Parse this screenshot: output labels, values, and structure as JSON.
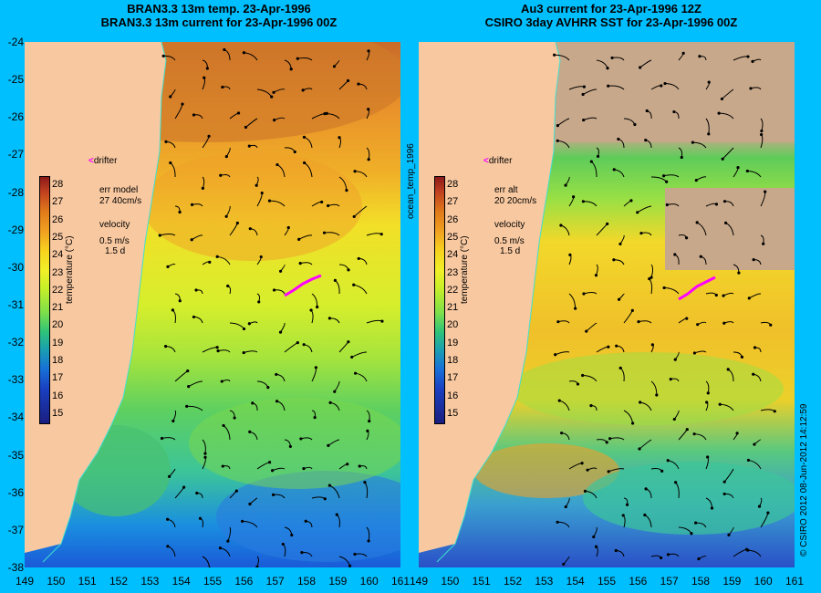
{
  "left_panel": {
    "title_line1": "BRAN3.3 13m temp. 23-Apr-1996",
    "title_line2": "BRAN3.3 13m current for 23-Apr-1996 00Z",
    "legend": {
      "drifter": "drifter",
      "err_label": "err model",
      "err_value": "27 40cm/s",
      "velocity_label": "velocity",
      "velocity_value": "0.5 m/s",
      "duration": "1.5 d"
    }
  },
  "right_panel": {
    "title_line1": "Au3 current for 23-Apr-1996 12Z",
    "title_line2": "CSIRO 3day AVHRR SST for 23-Apr-1996 00Z",
    "legend": {
      "drifter": "drifter",
      "err_label": "err alt",
      "err_value": "20 20cm/s",
      "velocity_label": "velocity",
      "velocity_value": "0.5 m/s",
      "duration": "1.5 d"
    }
  },
  "colorbar": {
    "unit": "temperature (°C)",
    "ticks": [
      "28",
      "27",
      "26",
      "25",
      "24",
      "23",
      "22",
      "21",
      "20",
      "19",
      "18",
      "17",
      "16",
      "15"
    ]
  },
  "y_axis_ticks": [
    "-24",
    "-25",
    "-26",
    "-27",
    "-28",
    "-29",
    "-30",
    "-31",
    "-32",
    "-33",
    "-34",
    "-35",
    "-36",
    "-37",
    "-38"
  ],
  "x_axis_ticks": [
    "149",
    "150",
    "151",
    "152",
    "153",
    "154",
    "155",
    "156",
    "157",
    "158",
    "159",
    "160",
    "161"
  ],
  "x_axis_ticks_right": [
    "149",
    "150",
    "151",
    "152",
    "153",
    "154",
    "155",
    "156",
    "157",
    "158",
    "159",
    "160",
    "161"
  ],
  "vertical_label": "ocean_temp_1996",
  "credit": "© CSIRO 2012  08-Jun-2012 14:12:59",
  "colors": {
    "background": "#00bfff",
    "land": "#f8c8a0",
    "drifter": "#ff00ff",
    "cloud": "#c8a88a"
  }
}
